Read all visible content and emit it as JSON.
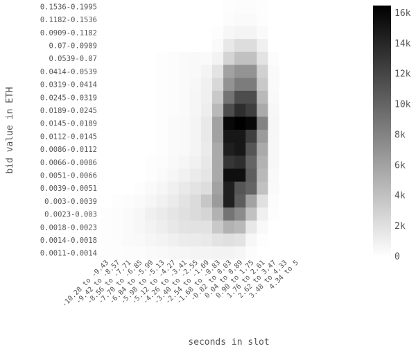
{
  "chart_data": {
    "type": "heatmap",
    "xlabel": "seconds in slot",
    "ylabel": "bid value in ETH",
    "x_categories": [
      "-10.28 to -9.43",
      "-9.42 to -8.57",
      "-8.56 to -7.71",
      "-7.70 to -6.85",
      "-6.84 to -5.99",
      "-5.98 to -5.13",
      "-5.12 to -4.27",
      "-4.26 to -3.41",
      "-3.40 to -2.55",
      "-2.54 to -1.69",
      "-1.68 to -0.83",
      "-0.82 to 0.03",
      "0.04 to 0.89",
      "0.90 to 1.75",
      "1.76 to 2.61",
      "2.62 to 3.47",
      "3.48 to 4.33",
      "4.34 to 5"
    ],
    "y_categories": [
      "0.1536-0.1995",
      "0.1182-0.1536",
      "0.0909-0.1182",
      "0.07-0.0909",
      "0.0539-0.07",
      "0.0414-0.0539",
      "0.0319-0.0414",
      "0.0245-0.0319",
      "0.0189-0.0245",
      "0.0145-0.0189",
      "0.0112-0.0145",
      "0.0086-0.0112",
      "0.0066-0.0086",
      "0.0051-0.0066",
      "0.0039-0.0051",
      "0.003-0.0039",
      "0.0023-0.003",
      "0.0018-0.0023",
      "0.0014-0.0018",
      "0.0011-0.0014"
    ],
    "values": [
      [
        0,
        0,
        0,
        0,
        0,
        0,
        0,
        0,
        0,
        0,
        0,
        100,
        200,
        200,
        100,
        0,
        0,
        0
      ],
      [
        0,
        0,
        0,
        0,
        0,
        0,
        0,
        0,
        0,
        0,
        0,
        200,
        300,
        300,
        100,
        0,
        0,
        0
      ],
      [
        0,
        0,
        0,
        0,
        0,
        0,
        0,
        0,
        0,
        0,
        100,
        500,
        700,
        700,
        300,
        0,
        0,
        0
      ],
      [
        0,
        0,
        0,
        0,
        0,
        0,
        0,
        0,
        0,
        0,
        300,
        1500,
        2200,
        2200,
        1000,
        0,
        0,
        0
      ],
      [
        0,
        0,
        0,
        0,
        0,
        100,
        200,
        300,
        400,
        300,
        800,
        2800,
        4000,
        4000,
        1800,
        200,
        0,
        0
      ],
      [
        0,
        0,
        0,
        0,
        0,
        100,
        200,
        300,
        400,
        700,
        1800,
        6000,
        7000,
        7000,
        3000,
        300,
        0,
        0
      ],
      [
        0,
        0,
        0,
        0,
        0,
        100,
        200,
        300,
        500,
        1000,
        2500,
        7000,
        8500,
        8500,
        3500,
        300,
        0,
        0
      ],
      [
        0,
        0,
        0,
        0,
        0,
        100,
        200,
        300,
        600,
        1000,
        3500,
        9000,
        11500,
        11500,
        4500,
        400,
        0,
        0
      ],
      [
        0,
        0,
        0,
        0,
        0,
        100,
        200,
        300,
        600,
        1100,
        4500,
        11500,
        13500,
        12500,
        5500,
        500,
        0,
        0
      ],
      [
        0,
        0,
        0,
        0,
        0,
        100,
        300,
        400,
        700,
        1400,
        6000,
        16000,
        16500,
        16000,
        8000,
        600,
        0,
        0
      ],
      [
        0,
        0,
        0,
        0,
        0,
        100,
        300,
        400,
        700,
        1400,
        6000,
        15000,
        15000,
        12500,
        6500,
        500,
        0,
        0
      ],
      [
        0,
        0,
        0,
        0,
        0,
        100,
        300,
        400,
        700,
        1300,
        5500,
        14500,
        15000,
        11000,
        5500,
        500,
        0,
        0
      ],
      [
        0,
        0,
        0,
        0,
        100,
        200,
        400,
        600,
        900,
        1500,
        5500,
        13000,
        13500,
        10000,
        5000,
        500,
        0,
        0
      ],
      [
        0,
        0,
        0,
        0,
        100,
        300,
        600,
        900,
        1300,
        1700,
        5500,
        15500,
        15500,
        10500,
        4500,
        400,
        0,
        0
      ],
      [
        0,
        0,
        0,
        100,
        300,
        600,
        1000,
        1400,
        1800,
        2200,
        6000,
        14500,
        11000,
        10000,
        4000,
        300,
        0,
        0
      ],
      [
        0,
        100,
        200,
        300,
        600,
        900,
        1300,
        1800,
        2300,
        3700,
        6500,
        14500,
        10500,
        6000,
        2000,
        200,
        0,
        0
      ],
      [
        100,
        200,
        300,
        500,
        1000,
        1300,
        1700,
        2000,
        2300,
        2700,
        5000,
        9000,
        7500,
        4000,
        1000,
        100,
        0,
        0
      ],
      [
        100,
        200,
        300,
        500,
        800,
        1100,
        1500,
        1800,
        1900,
        1900,
        3500,
        5000,
        4500,
        1500,
        400,
        0,
        0,
        0
      ],
      [
        100,
        200,
        300,
        400,
        600,
        800,
        1000,
        1200,
        1300,
        1400,
        1800,
        2000,
        1800,
        500,
        100,
        0,
        0,
        0
      ],
      [
        100,
        100,
        200,
        200,
        300,
        400,
        500,
        600,
        700,
        700,
        800,
        800,
        600,
        200,
        0,
        0,
        0,
        0
      ]
    ],
    "colorbar": {
      "min": 0,
      "max": 16500,
      "ticks": [
        0,
        2000,
        4000,
        6000,
        8000,
        10000,
        12000,
        14000,
        16000
      ],
      "tick_labels": [
        "0",
        "2k",
        "4k",
        "6k",
        "8k",
        "10k",
        "12k",
        "14k",
        "16k"
      ],
      "colors": [
        "#ffffff",
        "#000000"
      ]
    },
    "grid": false,
    "legend": "right colorbar"
  }
}
